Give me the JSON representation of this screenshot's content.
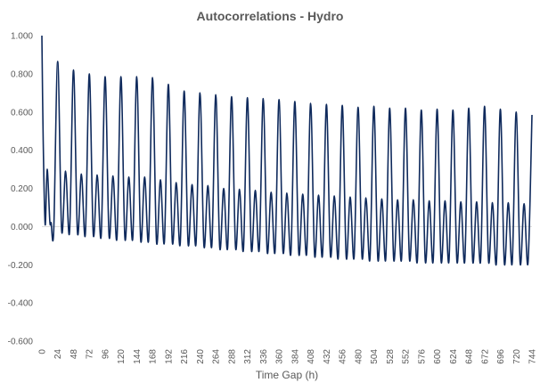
{
  "chart_data": {
    "type": "line",
    "title": "Autocorrelations - Hydro",
    "xlabel": "Time Gap (h)",
    "ylabel": "",
    "xlim": [
      0,
      744
    ],
    "ylim": [
      -0.6,
      1.0
    ],
    "x_ticks": [
      0,
      24,
      48,
      72,
      96,
      120,
      144,
      168,
      192,
      216,
      240,
      264,
      288,
      312,
      336,
      360,
      384,
      408,
      432,
      456,
      480,
      504,
      528,
      552,
      576,
      600,
      624,
      648,
      672,
      696,
      720,
      744
    ],
    "y_ticks": [
      "1.000",
      "0.800",
      "0.600",
      "0.400",
      "0.200",
      "0.000",
      "-0.200",
      "-0.400",
      "-0.600"
    ],
    "grid": false,
    "legend": "none",
    "series": [
      {
        "color": "#0f2a5c",
        "values": [
          [
            0,
            1.0
          ],
          [
            2,
            0.45
          ],
          [
            5,
            0.01
          ],
          [
            8,
            0.3
          ],
          [
            12,
            0.03
          ],
          [
            14,
            0.02
          ],
          [
            18,
            -0.02
          ],
          [
            24,
            0.865
          ],
          [
            30,
            -0.02
          ],
          [
            36,
            0.29
          ],
          [
            42,
            -0.03
          ],
          [
            48,
            0.82
          ],
          [
            54,
            -0.03
          ],
          [
            60,
            0.275
          ],
          [
            66,
            -0.04
          ],
          [
            72,
            0.8
          ],
          [
            78,
            -0.04
          ],
          [
            84,
            0.27
          ],
          [
            90,
            -0.05
          ],
          [
            96,
            0.785
          ],
          [
            102,
            -0.05
          ],
          [
            108,
            0.265
          ],
          [
            114,
            -0.06
          ],
          [
            120,
            0.785
          ],
          [
            126,
            -0.06
          ],
          [
            132,
            0.26
          ],
          [
            138,
            -0.06
          ],
          [
            144,
            0.785
          ],
          [
            150,
            -0.07
          ],
          [
            156,
            0.26
          ],
          [
            162,
            -0.07
          ],
          [
            168,
            0.78
          ],
          [
            174,
            -0.08
          ],
          [
            180,
            0.245
          ],
          [
            186,
            -0.08
          ],
          [
            192,
            0.745
          ],
          [
            198,
            -0.08
          ],
          [
            204,
            0.23
          ],
          [
            210,
            -0.09
          ],
          [
            216,
            0.71
          ],
          [
            222,
            -0.09
          ],
          [
            228,
            0.22
          ],
          [
            234,
            -0.09
          ],
          [
            240,
            0.7
          ],
          [
            246,
            -0.1
          ],
          [
            252,
            0.215
          ],
          [
            258,
            -0.1
          ],
          [
            264,
            0.69
          ],
          [
            270,
            -0.11
          ],
          [
            276,
            0.2
          ],
          [
            282,
            -0.11
          ],
          [
            288,
            0.68
          ],
          [
            294,
            -0.11
          ],
          [
            300,
            0.195
          ],
          [
            306,
            -0.12
          ],
          [
            312,
            0.675
          ],
          [
            318,
            -0.12
          ],
          [
            324,
            0.19
          ],
          [
            330,
            -0.12
          ],
          [
            336,
            0.67
          ],
          [
            342,
            -0.13
          ],
          [
            348,
            0.18
          ],
          [
            354,
            -0.13
          ],
          [
            360,
            0.665
          ],
          [
            366,
            -0.13
          ],
          [
            372,
            0.175
          ],
          [
            378,
            -0.14
          ],
          [
            384,
            0.655
          ],
          [
            390,
            -0.14
          ],
          [
            396,
            0.17
          ],
          [
            402,
            -0.14
          ],
          [
            408,
            0.645
          ],
          [
            414,
            -0.15
          ],
          [
            420,
            0.165
          ],
          [
            426,
            -0.15
          ],
          [
            432,
            0.64
          ],
          [
            438,
            -0.15
          ],
          [
            444,
            0.16
          ],
          [
            450,
            -0.16
          ],
          [
            456,
            0.635
          ],
          [
            462,
            -0.16
          ],
          [
            468,
            0.155
          ],
          [
            474,
            -0.16
          ],
          [
            480,
            0.625
          ],
          [
            486,
            -0.16
          ],
          [
            492,
            0.15
          ],
          [
            498,
            -0.17
          ],
          [
            504,
            0.63
          ],
          [
            510,
            -0.17
          ],
          [
            516,
            0.145
          ],
          [
            522,
            -0.17
          ],
          [
            528,
            0.62
          ],
          [
            534,
            -0.17
          ],
          [
            540,
            0.14
          ],
          [
            546,
            -0.17
          ],
          [
            552,
            0.62
          ],
          [
            558,
            -0.17
          ],
          [
            564,
            0.14
          ],
          [
            570,
            -0.18
          ],
          [
            576,
            0.61
          ],
          [
            582,
            -0.18
          ],
          [
            588,
            0.135
          ],
          [
            594,
            -0.18
          ],
          [
            600,
            0.615
          ],
          [
            606,
            -0.18
          ],
          [
            612,
            0.135
          ],
          [
            618,
            -0.18
          ],
          [
            624,
            0.61
          ],
          [
            630,
            -0.18
          ],
          [
            636,
            0.13
          ],
          [
            642,
            -0.18
          ],
          [
            648,
            0.62
          ],
          [
            654,
            -0.18
          ],
          [
            660,
            0.13
          ],
          [
            666,
            -0.18
          ],
          [
            672,
            0.63
          ],
          [
            678,
            -0.18
          ],
          [
            684,
            0.125
          ],
          [
            690,
            -0.19
          ],
          [
            696,
            0.615
          ],
          [
            702,
            -0.19
          ],
          [
            708,
            0.125
          ],
          [
            714,
            -0.19
          ],
          [
            720,
            0.6
          ],
          [
            726,
            -0.19
          ],
          [
            732,
            0.12
          ],
          [
            738,
            -0.19
          ],
          [
            744,
            0.585
          ]
        ]
      }
    ]
  }
}
